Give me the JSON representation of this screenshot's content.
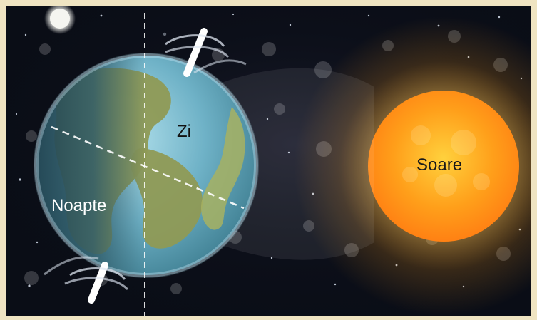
{
  "labels": {
    "day": "Zi",
    "night": "Noapte",
    "sun": "Soare"
  },
  "colors": {
    "space": "#0a0d16",
    "frame": "#efe4c2",
    "earth_day": "#6fb2c7",
    "earth_night": "#2f5a67",
    "land": "#8f9a55",
    "sun_core": "#ff9f1a",
    "sun_glow": "#ffd36a",
    "moon": "#f5f5f0"
  }
}
